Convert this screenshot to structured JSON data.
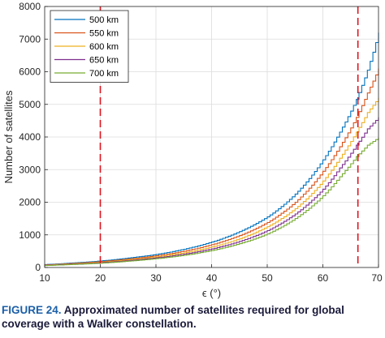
{
  "chart_data": {
    "type": "line",
    "xlabel": "ϵ (°)",
    "ylabel": "Number of satellites",
    "xlim": [
      10,
      70
    ],
    "ylim": [
      0,
      8000
    ],
    "grid": true,
    "legend_position": "top-left",
    "x_ticks": [
      "10",
      "20",
      "30",
      "40",
      "50",
      "60",
      "70"
    ],
    "y_ticks": [
      "0",
      "1000",
      "2000",
      "3000",
      "4000",
      "5000",
      "6000",
      "7000",
      "8000"
    ],
    "vlines": [
      20,
      66.3
    ],
    "vline_color": "#e0141e",
    "x": [
      10,
      15,
      20,
      25,
      30,
      35,
      40,
      45,
      50,
      55,
      60,
      63,
      66,
      68,
      70
    ],
    "series": [
      {
        "name": "500 km",
        "color": "#0072bd",
        "values": [
          90,
          140,
          200,
          290,
          400,
          560,
          780,
          1100,
          1550,
          2250,
          3300,
          4150,
          5150,
          6050,
          7200
        ]
      },
      {
        "name": "550 km",
        "color": "#d95319",
        "values": [
          80,
          125,
          180,
          260,
          360,
          500,
          700,
          980,
          1380,
          2000,
          2950,
          3700,
          4600,
          5350,
          6100
        ]
      },
      {
        "name": "600 km",
        "color": "#edb120",
        "values": [
          72,
          112,
          160,
          235,
          325,
          450,
          630,
          880,
          1250,
          1800,
          2650,
          3350,
          4150,
          4750,
          5200
        ]
      },
      {
        "name": "650 km",
        "color": "#7e2f8e",
        "values": [
          66,
          100,
          145,
          212,
          295,
          410,
          570,
          800,
          1130,
          1640,
          2400,
          3050,
          3750,
          4250,
          4600
        ]
      },
      {
        "name": "700 km",
        "color": "#77ac30",
        "values": [
          60,
          92,
          132,
          193,
          270,
          375,
          520,
          730,
          1030,
          1500,
          2200,
          2780,
          3400,
          3750,
          3980
        ]
      }
    ]
  },
  "caption": {
    "label": "FIGURE 24.",
    "text": "Approximated number of satellites required for global coverage with a Walker constellation."
  }
}
